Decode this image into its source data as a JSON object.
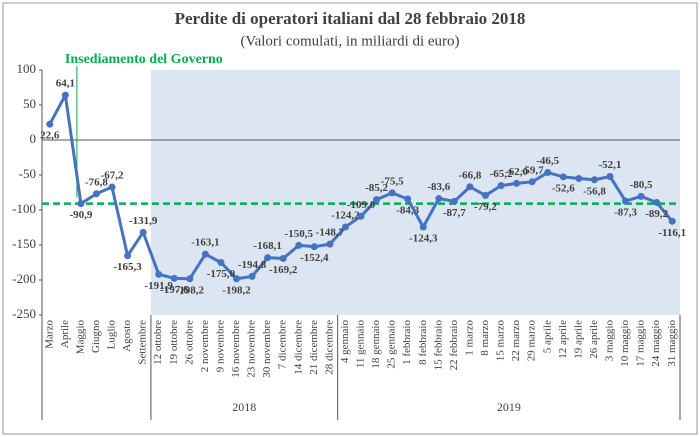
{
  "chart_data": {
    "type": "line",
    "title": "Perdite di operatori italiani  dal 28 febbraio 2018",
    "subtitle": "(Valori comulati, in miliardi di euro)",
    "annotation": "Insediamento del Governo",
    "categories": [
      "Marzo",
      "Aprile",
      "Maggio",
      "Giugno",
      "Luglio",
      "Agosto",
      "Settembre",
      "12 ottobre",
      "19 ottobre",
      "26 ottobre",
      "2 novembre",
      "9 novembre",
      "16 novembre",
      "23 novembre",
      "30 novembre",
      "7 dicembre",
      "14 dicembre",
      "21 dicembre",
      "28 dicembre",
      "4 gennaio",
      "11 gennaio",
      "18 gennaio",
      "25 gennaio",
      "1 febbraio",
      "8 febbraio",
      "15 febbraio",
      "22 febbraio",
      "1 marzo",
      "8 marzo",
      "15 marzo",
      "22 marzo",
      "29 marzo",
      "5 aprile",
      "12 aprile",
      "19 aprile",
      "26 aprile",
      "3 maggio",
      "10 maggio",
      "17 maggio",
      "24 maggio",
      "31 maggio"
    ],
    "groups": [
      {
        "label": "2018",
        "count": 12
      },
      {
        "label": "2019",
        "count": 22
      }
    ],
    "series": [
      {
        "name": "Perdite",
        "color": "#4472c4",
        "values": [
          22.6,
          64.1,
          -90.9,
          -76.8,
          -67.2,
          -165.3,
          -131.9,
          -191.9,
          -197.6,
          -198.2,
          -163.1,
          -175.0,
          -198.2,
          -194.8,
          -168.1,
          -169.2,
          -150.5,
          -152.4,
          -148.7,
          -124.2,
          -109.0,
          -85.2,
          -75.5,
          -84.3,
          -124.3,
          -83.6,
          -87.7,
          -66.8,
          -79.2,
          -65.2,
          -62.0,
          -59.7,
          -46.5,
          -52.6,
          -55,
          -56.8,
          -52.1,
          -87.3,
          -80.5,
          -89.2,
          -116.1
        ],
        "value_labels": [
          "22,6",
          "64,1",
          "-90,9",
          "-76,8",
          "-67,2",
          "-165,3",
          "-131,9",
          "-191,9",
          "-197,6",
          "-198,2",
          "-163,1",
          "-175,0",
          "-198,2",
          "-194,8",
          "-168,1",
          "-169,2",
          "-150,5",
          "-152,4",
          "-148,7",
          "-124,2",
          "-109,0",
          "-85,2",
          "-75,5",
          "-84,3",
          "-124,3",
          "-83,6",
          "-87,7",
          "-66,8",
          "-79,2",
          "-65,2",
          "-62,0",
          "-59,7",
          "-46,5",
          "-52,6",
          null,
          "-56,8",
          "-52,1",
          "-87,3",
          "-80,5",
          "-89,2",
          "-116,1"
        ]
      }
    ],
    "reference_line": {
      "value": -90.9,
      "color": "#00b050"
    },
    "shade_color": "#dce6f2",
    "ylim": [
      -250,
      100
    ],
    "yticks": [
      100,
      50,
      0,
      -50,
      -100,
      -150,
      -200,
      -250
    ]
  }
}
